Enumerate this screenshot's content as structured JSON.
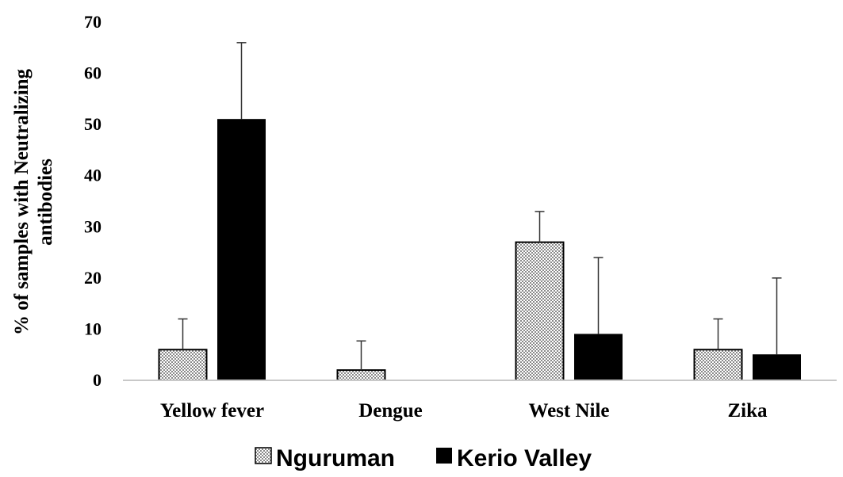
{
  "chart_data": {
    "type": "bar",
    "title": "",
    "ylabel_lines": [
      "% of samples with Neutralizing",
      "antibodies"
    ],
    "xlabel": "",
    "ylim": [
      0,
      70
    ],
    "yticks": [
      0,
      10,
      20,
      30,
      40,
      50,
      60,
      70
    ],
    "categories": [
      "Yellow fever",
      "Dengue",
      "West Nile",
      "Zika"
    ],
    "series": [
      {
        "name": "Nguruman",
        "values": [
          6,
          2,
          27,
          6
        ],
        "errors": [
          6,
          5.7,
          6,
          6
        ],
        "pattern": "crosshatch"
      },
      {
        "name": "Kerio Valley",
        "values": [
          51,
          null,
          9,
          5
        ],
        "errors": [
          15,
          null,
          15,
          15
        ],
        "color": "#000000"
      }
    ],
    "grid": false,
    "legend_position": "bottom"
  }
}
